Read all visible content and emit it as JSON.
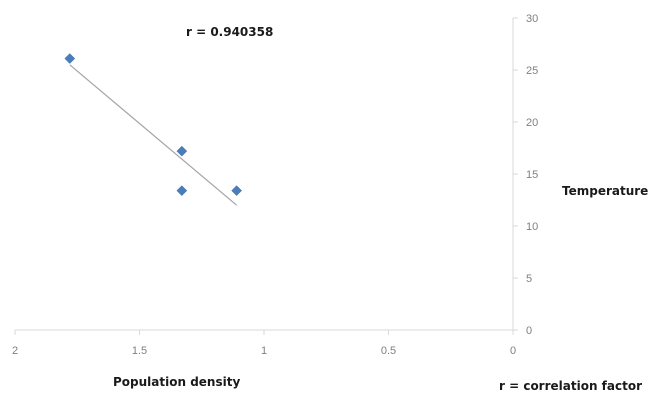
{
  "chart_data": {
    "type": "scatter",
    "title": "",
    "xlabel": "Population density",
    "ylabel": "Temperature",
    "x_reversed": true,
    "xlim": [
      0,
      2
    ],
    "ylim": [
      0,
      30
    ],
    "x_ticks": [
      2,
      1.5,
      1,
      0.5,
      0
    ],
    "x_tick_labels": [
      "2",
      "1.5",
      "1",
      "0.5",
      "0"
    ],
    "y_ticks": [
      0,
      5,
      10,
      15,
      20,
      25,
      30
    ],
    "y_tick_labels": [
      "0",
      "5",
      "10",
      "15",
      "20",
      "25",
      "30"
    ],
    "y_axis_position": "right",
    "grid": false,
    "legend": "none",
    "series": [
      {
        "marker": "diamond",
        "color": "#4a7ebb",
        "points": [
          {
            "x": 1.78,
            "y": 26.1
          },
          {
            "x": 1.33,
            "y": 17.2
          },
          {
            "x": 1.33,
            "y": 13.4
          },
          {
            "x": 1.11,
            "y": 13.4
          }
        ]
      }
    ],
    "trendline": {
      "type": "linear",
      "color": "#a6a6a6",
      "from": {
        "x": 1.78,
        "y": 25.5
      },
      "to": {
        "x": 1.11,
        "y": 12.0
      }
    },
    "annotations": {
      "correlation": "r = 0.940358",
      "footnote": "r = correlation factor"
    }
  }
}
